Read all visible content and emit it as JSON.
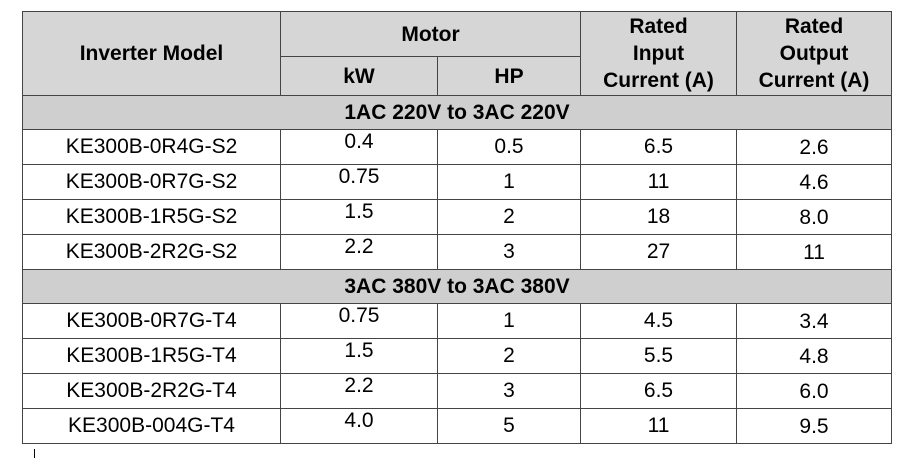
{
  "header": {
    "model": "Inverter Model",
    "motor": "Motor",
    "kw": "kW",
    "hp": "HP",
    "input": [
      "Rated",
      "Input",
      "Current (A)"
    ],
    "output": [
      "Rated",
      "Output",
      "Current (A)"
    ]
  },
  "sections": [
    {
      "title": "1AC 220V to 3AC 220V",
      "rows": [
        {
          "model": "KE300B-0R4G-S2",
          "kw": "0.4",
          "hp": "0.5",
          "input": "6.5",
          "output": "2.6"
        },
        {
          "model": "KE300B-0R7G-S2",
          "kw": "0.75",
          "hp": "1",
          "input": "11",
          "output": "4.6"
        },
        {
          "model": "KE300B-1R5G-S2",
          "kw": "1.5",
          "hp": "2",
          "input": "18",
          "output": "8.0"
        },
        {
          "model": "KE300B-2R2G-S2",
          "kw": "2.2",
          "hp": "3",
          "input": "27",
          "output": "11"
        }
      ]
    },
    {
      "title": "3AC 380V to 3AC 380V",
      "rows": [
        {
          "model": "KE300B-0R7G-T4",
          "kw": "0.75",
          "hp": "1",
          "input": "4.5",
          "output": "3.4"
        },
        {
          "model": "KE300B-1R5G-T4",
          "kw": "1.5",
          "hp": "2",
          "input": "5.5",
          "output": "4.8"
        },
        {
          "model": "KE300B-2R2G-T4",
          "kw": "2.2",
          "hp": "3",
          "input": "6.5",
          "output": "6.0"
        },
        {
          "model": "KE300B-004G-T4",
          "kw": "4.0",
          "hp": "5",
          "input": "11",
          "output": "9.5"
        }
      ]
    }
  ]
}
